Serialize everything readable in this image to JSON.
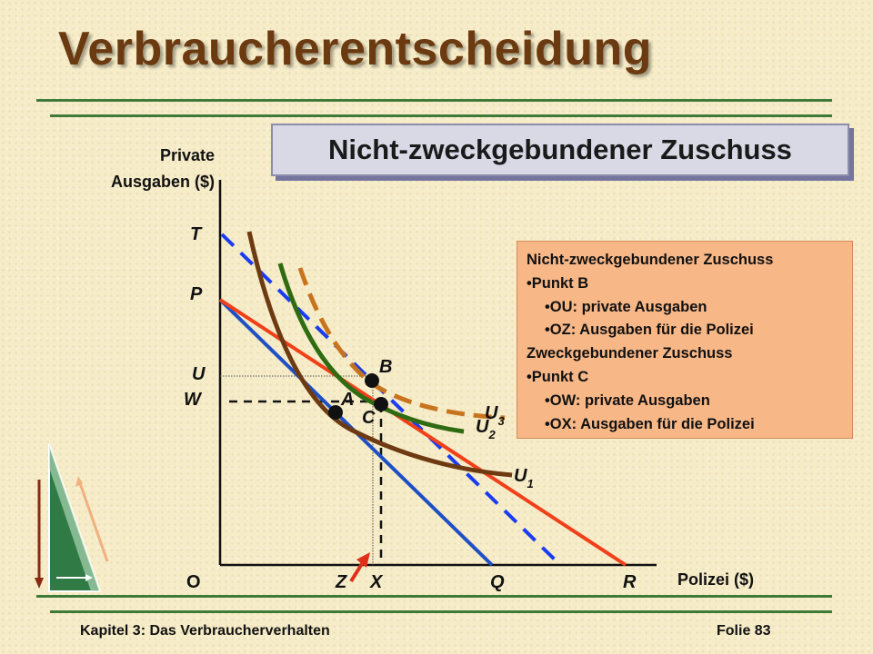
{
  "slide": {
    "title": "Verbraucherentscheidung",
    "subtitle": "Nicht-zweckgebundener Zuschuss",
    "footer_left": "Kapitel 3: Das Verbraucherverhalten",
    "footer_right": "Folie 83"
  },
  "axes": {
    "ylabel_line1": "Private",
    "ylabel_line2": "Ausgaben ($)",
    "xlabel": "Polizei ($)"
  },
  "points": {
    "O": "O",
    "Z": "Z",
    "X": "X",
    "Q": "Q",
    "R": "R",
    "T": "T",
    "P": "P",
    "U": "U",
    "W": "W",
    "A": "A",
    "B": "B",
    "C": "C"
  },
  "curves": {
    "U1": "U",
    "U1_sub": "1",
    "U2": "U",
    "U2_sub": "2",
    "U3": "U",
    "U3_sub": "3"
  },
  "info_box": {
    "h1": "Nicht-zweckgebundener Zuschuss",
    "b1": "•Punkt B",
    "b1a": "•OU: private Ausgaben",
    "b1b": "•OZ: Ausgaben für die Polizei",
    "h2": "Zweckgebundener Zuschuss",
    "b2": "•Punkt C",
    "b2a": "•OW: private Ausgaben",
    "b2b": "•OX: Ausgaben für die Polizei"
  },
  "colors": {
    "title": "#6b3a10",
    "rule": "#3f7a3a",
    "budget_original": "#1f4fc4",
    "budget_grant": "#f0401a",
    "budget_dashed": "#1a3cf0",
    "indifference_u1": "#6e3a12",
    "indifference_u2": "#2f6b12",
    "indifference_u3": "#c8741e"
  }
}
